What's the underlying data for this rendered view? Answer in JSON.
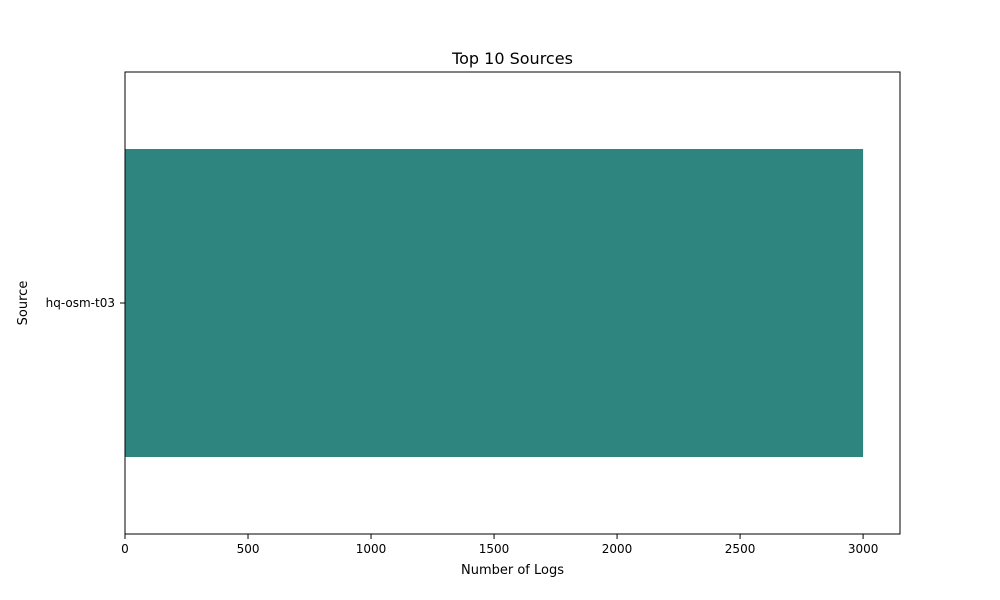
{
  "chart_data": {
    "type": "bar",
    "orientation": "horizontal",
    "title": "Top 10 Sources",
    "xlabel": "Number of Logs",
    "ylabel": "Source",
    "categories": [
      "hq-osm-t03"
    ],
    "values": [
      3000
    ],
    "xlim": [
      0,
      3150
    ],
    "xticks": [
      0,
      500,
      1000,
      1500,
      2000,
      2500,
      3000
    ],
    "grid": false,
    "bar_color": "#2e847e"
  }
}
